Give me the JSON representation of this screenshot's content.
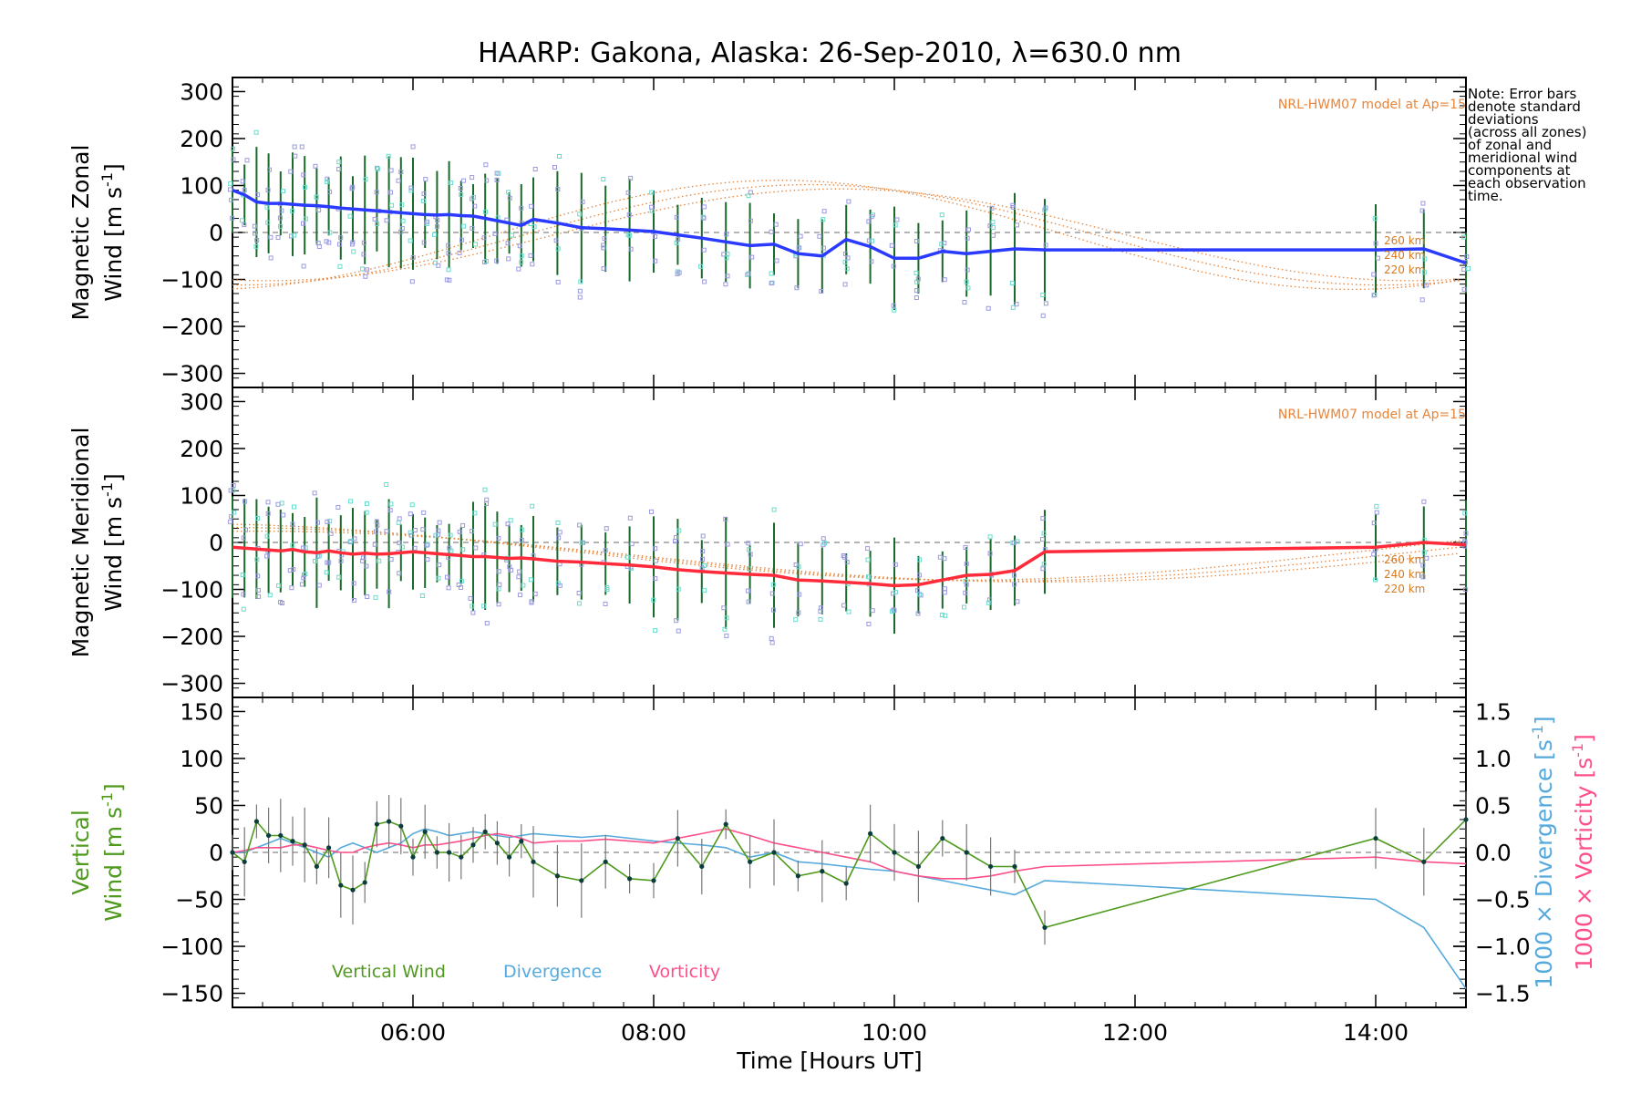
{
  "title": "HAARP: Gakona,  Alaska: 26-Sep-2010, λ=630.0 nm",
  "x_axis": {
    "label": "Time [Hours UT]",
    "range": [
      4.5,
      14.75
    ],
    "ticks": [
      6,
      8,
      10,
      12,
      14
    ],
    "tick_labels": [
      "06:00",
      "08:00",
      "10:00",
      "12:00",
      "14:00"
    ]
  },
  "note_lines": [
    "Note: Error bars",
    "denote standard",
    "deviations",
    "(across all zones)",
    "of zonal and",
    "meridional wind",
    "components at",
    "each observation",
    "time."
  ],
  "colors": {
    "zonal": "#2b3aff",
    "meridional": "#ff2a3a",
    "vertical": "#4f9a1e",
    "divergence": "#55aadd",
    "vorticity": "#ff4f8a",
    "model": "#e8843a",
    "scatter": "#9a9ae0",
    "scatter_alt": "#66ddcc"
  },
  "panels": {
    "zonal": {
      "ylabel_line1": "Magnetic Zonal",
      "ylabel_line2_a": "Wind [m s",
      "ylabel_line2_sup": "-1",
      "ylabel_line2_b": "]",
      "model_label": "NRL-HWM07 model at Ap=15",
      "ylim": [
        -330,
        330
      ],
      "yticks": [
        300,
        200,
        100,
        0,
        -100,
        -200,
        -300
      ],
      "altitude_labels": [
        "260 km",
        "240 km",
        "220 km"
      ]
    },
    "meridional": {
      "ylabel_line1": "Magnetic Meridional",
      "ylabel_line2_a": "Wind [m s",
      "ylabel_line2_sup": "-1",
      "ylabel_line2_b": "]",
      "model_label": "NRL-HWM07 model at Ap=15",
      "ylim": [
        -330,
        330
      ],
      "yticks": [
        300,
        200,
        100,
        0,
        -100,
        -200,
        -300
      ],
      "altitude_labels": [
        "260 km",
        "240 km",
        "220 km"
      ]
    },
    "vertical": {
      "ylabel_line1": "Vertical",
      "ylabel_line2_a": "Wind [m s",
      "ylabel_line2_sup": "-1",
      "ylabel_line2_b": "]",
      "ylim": [
        -165,
        165
      ],
      "yticks": [
        150,
        100,
        50,
        0,
        -50,
        -100,
        -150
      ],
      "y2lim": [
        -1.65,
        1.65
      ],
      "y2ticks": [
        1.5,
        1.0,
        0.5,
        0.0,
        -0.5,
        -1.0,
        -1.5
      ],
      "y2tick_labels": [
        "1.5",
        "1.0",
        "0.5",
        "0.0",
        "−0.5",
        "−1.0",
        "−1.5"
      ],
      "y2label_div_a": "1000 × Divergence [s",
      "y2label_div_sup": "-1",
      "y2label_div_b": "]",
      "y2label_vort_a": "1000 × Vorticity [s",
      "y2label_vort_sup": "-1",
      "y2label_vort_b": "]",
      "legend": [
        "Vertical Wind",
        "Divergence",
        "Vorticity"
      ]
    }
  },
  "chart_data": {
    "type": "line",
    "x": [
      4.5,
      4.6,
      4.7,
      4.8,
      4.9,
      5.0,
      5.1,
      5.2,
      5.3,
      5.4,
      5.5,
      5.6,
      5.7,
      5.8,
      5.9,
      6.0,
      6.1,
      6.2,
      6.3,
      6.4,
      6.5,
      6.6,
      6.7,
      6.8,
      6.9,
      7.0,
      7.2,
      7.4,
      7.6,
      7.8,
      8.0,
      8.2,
      8.4,
      8.6,
      8.8,
      9.0,
      9.2,
      9.4,
      9.6,
      9.8,
      10.0,
      10.2,
      10.4,
      10.6,
      10.8,
      11.0,
      11.25,
      14.0,
      14.4,
      14.75
    ],
    "series": [
      {
        "name": "Magnetic Zonal Wind",
        "values": [
          90,
          80,
          65,
          62,
          62,
          60,
          58,
          57,
          55,
          52,
          50,
          48,
          46,
          44,
          42,
          40,
          38,
          37,
          38,
          36,
          35,
          30,
          25,
          20,
          15,
          28,
          20,
          10,
          8,
          5,
          2,
          -5,
          -12,
          -20,
          -28,
          -25,
          -45,
          -50,
          -15,
          -30,
          -55,
          -55,
          -40,
          -45,
          -40,
          -35,
          -37,
          -37,
          -35,
          -65
        ]
      },
      {
        "name": "Magnetic Meridional Wind",
        "values": [
          -10,
          -12,
          -14,
          -16,
          -18,
          -15,
          -20,
          -22,
          -18,
          -22,
          -25,
          -23,
          -25,
          -24,
          -22,
          -20,
          -22,
          -24,
          -26,
          -28,
          -30,
          -30,
          -32,
          -34,
          -33,
          -35,
          -40,
          -42,
          -45,
          -48,
          -52,
          -58,
          -62,
          -65,
          -68,
          -70,
          -80,
          -82,
          -85,
          -88,
          -92,
          -90,
          -80,
          -70,
          -68,
          -60,
          -20,
          -10,
          0,
          -5
        ]
      },
      {
        "name": "Vertical Wind",
        "values": [
          0,
          -10,
          33,
          18,
          18,
          12,
          8,
          -15,
          5,
          -35,
          -40,
          -32,
          30,
          33,
          28,
          -5,
          22,
          0,
          0,
          -5,
          8,
          22,
          10,
          -5,
          12,
          -10,
          -25,
          -30,
          -10,
          -28,
          -30,
          15,
          -15,
          30,
          -10,
          0,
          -25,
          -20,
          -33,
          20,
          0,
          -15,
          15,
          0,
          -15,
          -15,
          -80,
          15,
          -10,
          35
        ]
      },
      {
        "name": "Divergence",
        "values": [
          0.0,
          0.0,
          0.05,
          0.1,
          0.15,
          0.1,
          0.05,
          0.0,
          -0.05,
          0.05,
          0.1,
          0.05,
          0.0,
          0.05,
          0.1,
          0.2,
          0.25,
          0.22,
          0.18,
          0.2,
          0.22,
          0.2,
          0.18,
          0.16,
          0.18,
          0.2,
          0.18,
          0.16,
          0.18,
          0.15,
          0.12,
          0.1,
          0.08,
          0.05,
          -0.05,
          0.0,
          -0.1,
          -0.12,
          -0.15,
          -0.18,
          -0.2,
          -0.25,
          -0.3,
          -0.35,
          -0.4,
          -0.45,
          -0.3,
          -0.5,
          -0.8,
          -1.45
        ]
      },
      {
        "name": "Vorticity",
        "values": [
          0.0,
          0.02,
          0.05,
          0.05,
          0.05,
          0.08,
          0.08,
          0.05,
          0.02,
          0.0,
          0.0,
          0.05,
          0.08,
          0.1,
          0.08,
          0.05,
          0.08,
          0.08,
          0.1,
          0.12,
          0.15,
          0.18,
          0.2,
          0.18,
          0.15,
          0.1,
          0.12,
          0.12,
          0.14,
          0.12,
          0.1,
          0.15,
          0.2,
          0.25,
          0.18,
          0.1,
          0.05,
          0.0,
          -0.05,
          -0.1,
          -0.2,
          -0.25,
          -0.28,
          -0.28,
          -0.25,
          -0.2,
          -0.15,
          -0.05,
          -0.1,
          -0.12
        ]
      }
    ]
  }
}
